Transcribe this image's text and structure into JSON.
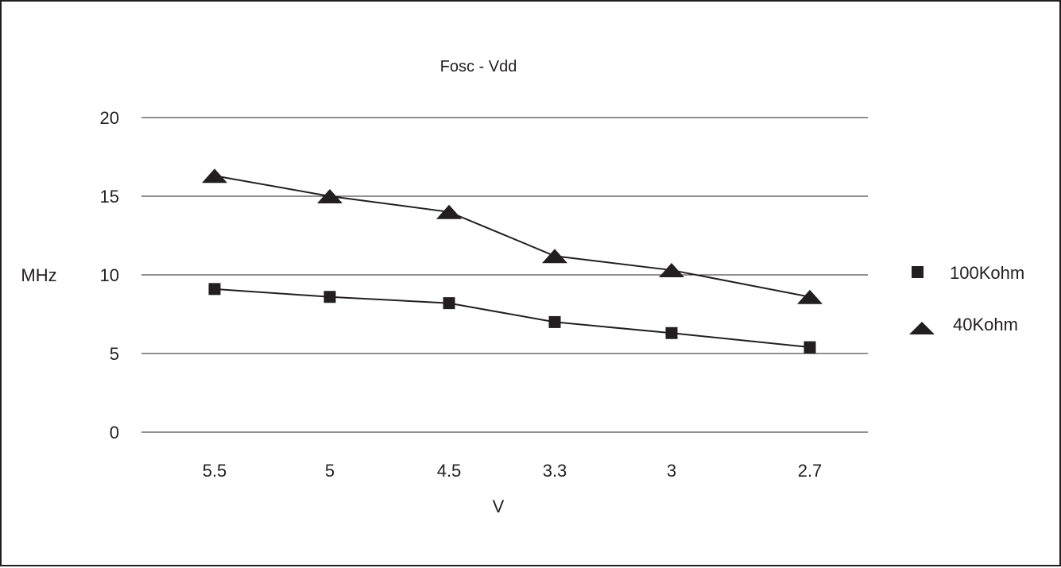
{
  "chart_data": {
    "type": "line",
    "title": "Fosc - Vdd",
    "xlabel": "V",
    "ylabel": "MHz",
    "categories": [
      "5.5",
      "5",
      "4.5",
      "3.3",
      "3",
      "2.7"
    ],
    "y_ticks": [
      "20",
      "15",
      "10",
      "5",
      "0"
    ],
    "ylim": [
      0,
      20
    ],
    "grid": true,
    "legend_position": "right",
    "series": [
      {
        "name": "100Kohm",
        "marker": "square",
        "values": [
          9.1,
          8.6,
          8.2,
          7.0,
          6.3,
          5.4
        ]
      },
      {
        "name": "40Kohm",
        "marker": "triangle",
        "values": [
          16.3,
          15.0,
          14.0,
          11.2,
          10.3,
          8.6
        ]
      }
    ],
    "colors": {
      "ink": "#231f20",
      "grid": "#231f20"
    }
  }
}
